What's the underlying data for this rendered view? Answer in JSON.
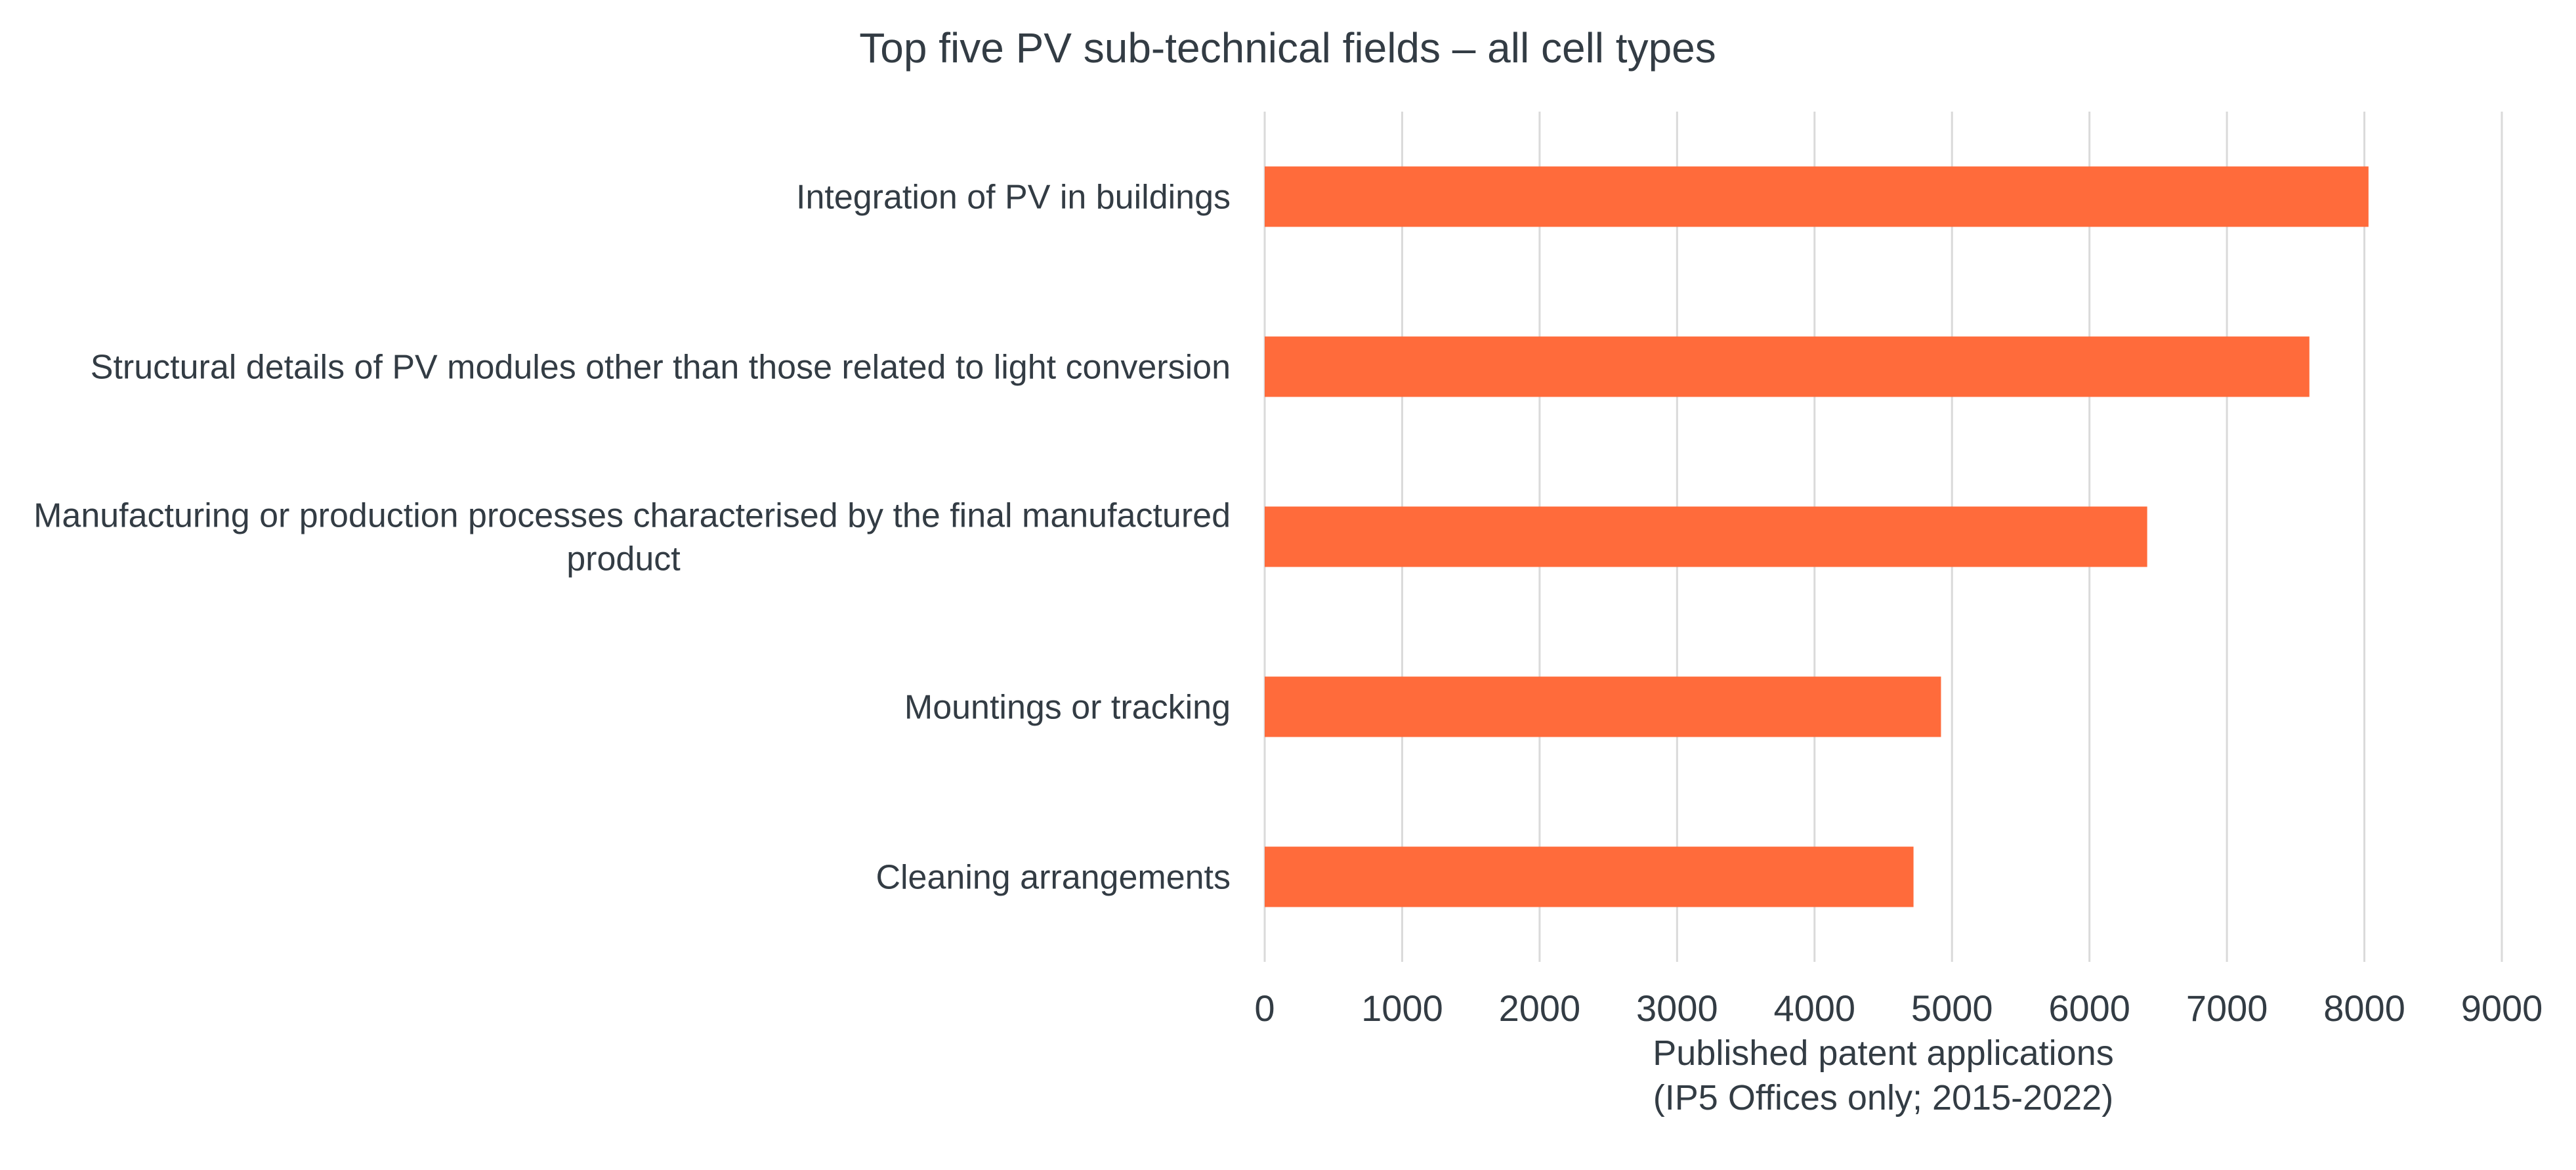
{
  "chart_data": {
    "type": "bar",
    "orientation": "horizontal",
    "title": "Top five PV sub-technical fields – all cell types",
    "categories": [
      [
        "Integration of PV in buildings"
      ],
      [
        "Structural details of PV modules other than those related to light conversion"
      ],
      [
        "Manufacturing or production processes characterised by the final manufactured",
        "product"
      ],
      [
        "Mountings or tracking"
      ],
      [
        "Cleaning arrangements"
      ]
    ],
    "values": [
      8030,
      7600,
      6420,
      4920,
      4720
    ],
    "xlabel": [
      "Published patent applications",
      "(IP5 Offices only; 2015-2022)"
    ],
    "ylabel": "",
    "xlim": [
      0,
      9000
    ],
    "xticks": [
      0,
      1000,
      2000,
      3000,
      4000,
      5000,
      6000,
      7000,
      8000,
      9000
    ],
    "grid": "vertical",
    "legend": "none",
    "bar_color": "#ff6b3b"
  }
}
